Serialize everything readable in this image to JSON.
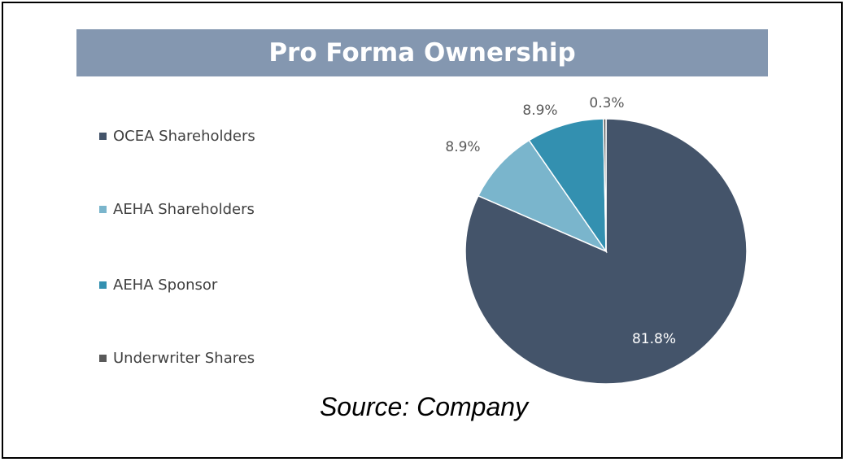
{
  "chart_data": {
    "type": "pie",
    "title": "Pro Forma Ownership",
    "categories": [
      "OCEA Shareholders",
      "AEHA Shareholders",
      "AEHA Sponsor",
      "Underwriter Shares"
    ],
    "values": [
      81.8,
      8.9,
      8.9,
      0.3
    ],
    "labels": [
      "81.8%",
      "8.9%",
      "8.9%",
      "0.3%"
    ],
    "colors": [
      "#44546a",
      "#7ab5cc",
      "#3390b0",
      "#595959"
    ],
    "legend_position": "left",
    "start": "12 o'clock, clockwise"
  },
  "source": "Source: Company"
}
